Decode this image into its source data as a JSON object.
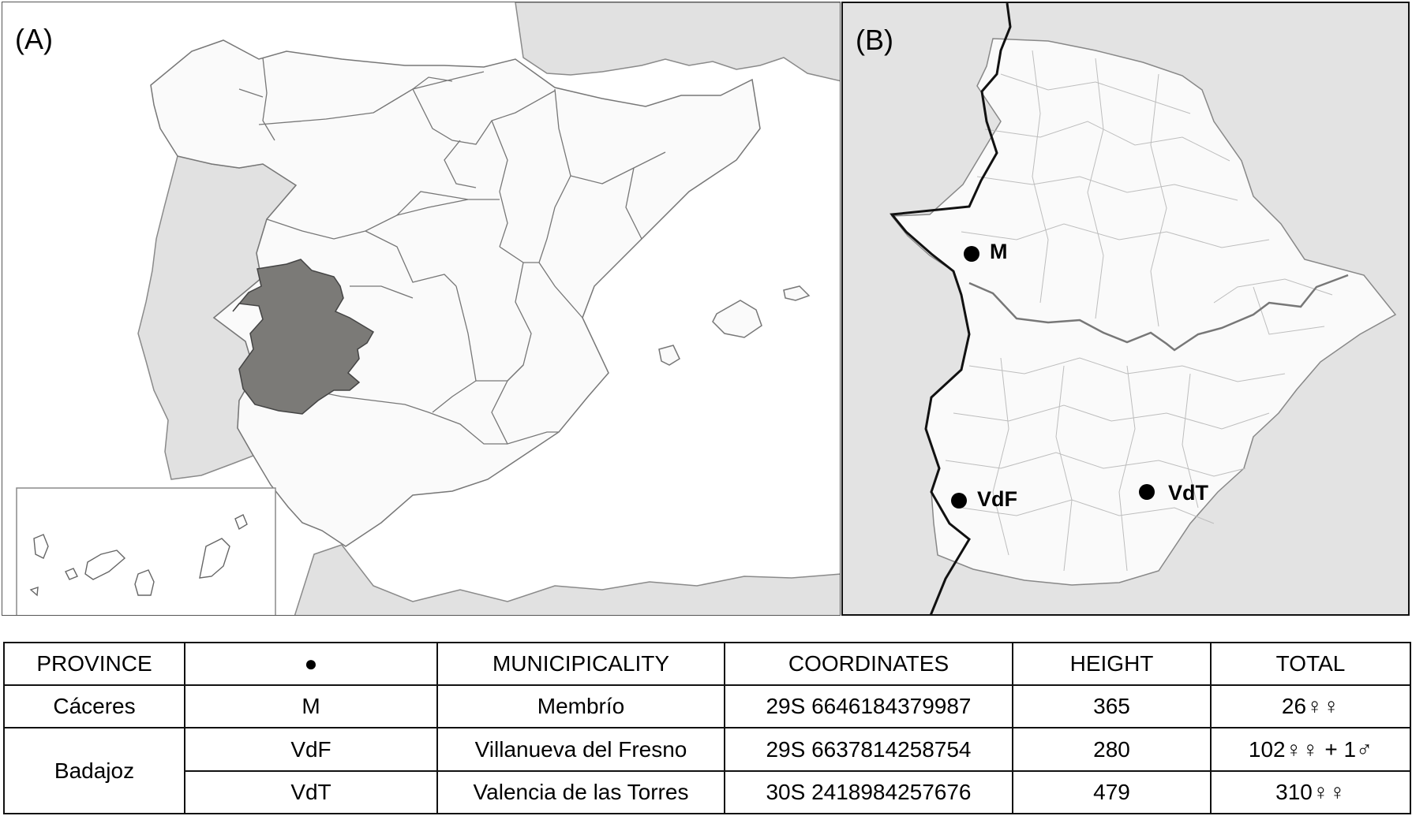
{
  "panel_a": {
    "label": "(A)"
  },
  "panel_b": {
    "label": "(B)",
    "sites": [
      {
        "code": "M"
      },
      {
        "code": "VdF"
      },
      {
        "code": "VdT"
      }
    ]
  },
  "colors": {
    "highlight_region": "#7b7a77",
    "portugal": "#e1e1e1",
    "spain": "#fafafa",
    "sea": "#ffffff",
    "border_line": "#777777",
    "outside_region_b": "#e3e3e3",
    "marker": "#000000"
  },
  "table": {
    "headers": [
      "PROVINCE",
      "●",
      "MUNICIPICALITY",
      "COORDINATES",
      "HEIGHT",
      "TOTAL"
    ],
    "rows": [
      {
        "province": "Cáceres",
        "code": "M",
        "municipality": "Membrío",
        "coordinates": "29S 6646184379987",
        "height": "365",
        "total": "26♀♀"
      },
      {
        "province": "Badajoz",
        "code": "VdF",
        "municipality": "Villanueva del Fresno",
        "coordinates": "29S 6637814258754",
        "height": "280",
        "total": "102♀♀ + 1♂"
      },
      {
        "code": "VdT",
        "municipality": "Valencia de las Torres",
        "coordinates": "30S 2418984257676",
        "height": "479",
        "total": "310♀♀"
      }
    ]
  }
}
